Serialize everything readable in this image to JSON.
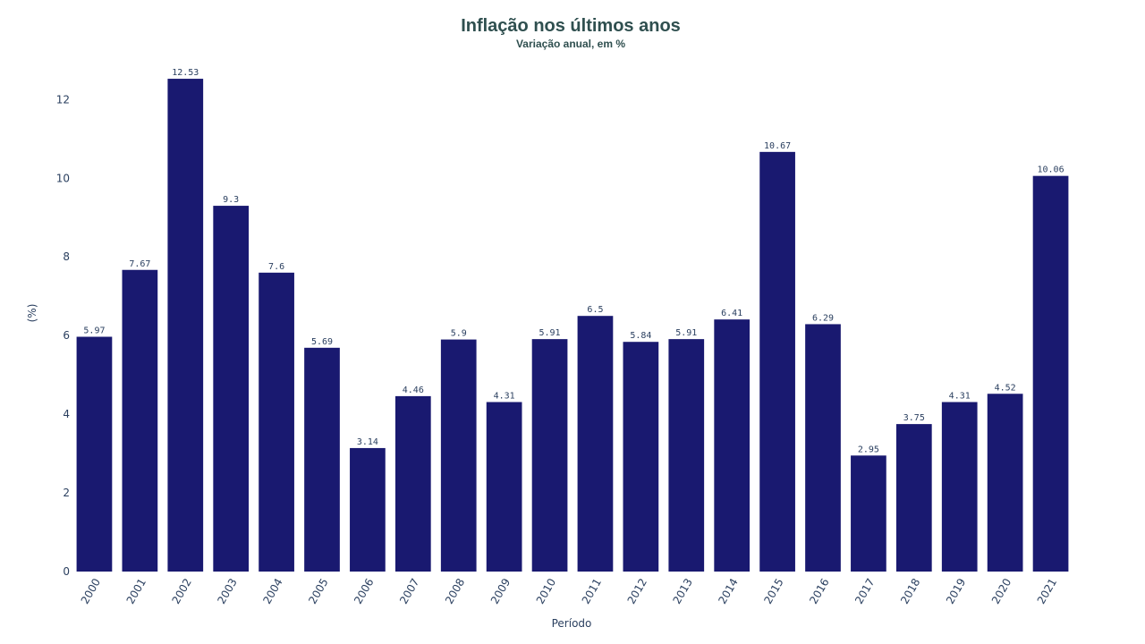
{
  "chart_data": {
    "type": "bar",
    "title": "Inflação nos últimos anos",
    "subtitle": "Variação anual, em %",
    "xlabel": "Período",
    "ylabel": "(%)",
    "categories": [
      "2000",
      "2001",
      "2002",
      "2003",
      "2004",
      "2005",
      "2006",
      "2007",
      "2008",
      "2009",
      "2010",
      "2011",
      "2012",
      "2013",
      "2014",
      "2015",
      "2016",
      "2017",
      "2018",
      "2019",
      "2020",
      "2021"
    ],
    "values": [
      5.97,
      7.67,
      12.53,
      9.3,
      7.6,
      5.69,
      3.14,
      4.46,
      5.9,
      4.31,
      5.91,
      6.5,
      5.84,
      5.91,
      6.41,
      10.67,
      6.29,
      2.95,
      3.75,
      4.31,
      4.52,
      10.06
    ],
    "data_labels": [
      "5.97",
      "7.67",
      "12.53",
      "9.3",
      "7.6",
      "5.69",
      "3.14",
      "4.46",
      "5.9",
      "4.31",
      "5.91",
      "6.5",
      "5.84",
      "5.91",
      "6.41",
      "10.67",
      "6.29",
      "2.95",
      "3.75",
      "4.31",
      "4.52",
      "10.06"
    ],
    "y_ticks": [
      0,
      2,
      4,
      6,
      8,
      10,
      12
    ],
    "ylim": [
      0,
      13.2
    ],
    "grid": false,
    "colors": {
      "bar": "#191970",
      "title": "#2f4f4f",
      "text": "#2a3f5f"
    }
  }
}
